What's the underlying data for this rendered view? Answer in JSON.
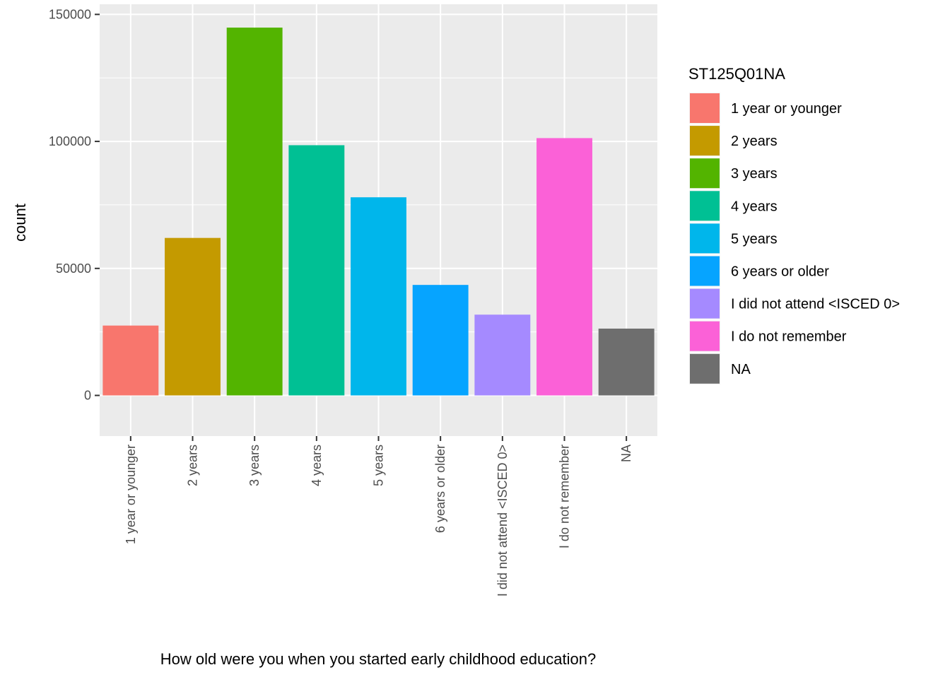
{
  "chart_data": {
    "type": "bar",
    "xlabel": "How old were you when you started early childhood education?",
    "ylabel": "count",
    "ylim": [
      -16000,
      154000
    ],
    "yticks": [
      0,
      50000,
      100000,
      150000
    ],
    "ytick_labels": [
      "0",
      "50000",
      "100000",
      "150000"
    ],
    "grid": true,
    "legend_position": "right",
    "legend_title": "ST125Q01NA",
    "categories": [
      "1 year or younger",
      "2 years",
      "3 years",
      "4 years",
      "5 years",
      "6 years or older",
      "I did not attend <ISCED 0>",
      "I do not remember",
      "NA"
    ],
    "values": [
      27500,
      62000,
      144800,
      98500,
      78000,
      43500,
      31800,
      101300,
      26300
    ],
    "colors": [
      "#F8766D",
      "#C49A00",
      "#53B400",
      "#00C094",
      "#00B6EB",
      "#06A4FF",
      "#A58AFF",
      "#FB61D7",
      "#6E6E6E"
    ]
  }
}
